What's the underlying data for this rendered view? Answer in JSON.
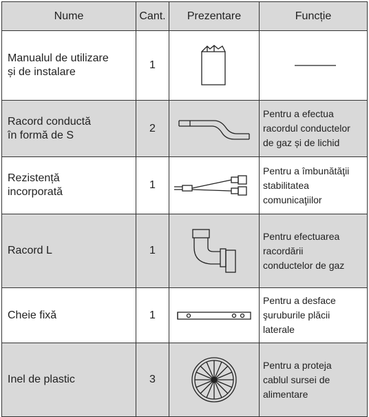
{
  "table": {
    "header": [
      "Nume",
      "Cant.",
      "Prezentare",
      "Funcție"
    ],
    "rows": [
      {
        "name": "Manualul de utilizare\nși de instalare",
        "count": 1
      },
      {
        "name": "Racord conductă\nîn formă de S",
        "count": 2,
        "function": "Pentru a efectua\nracordul conductelor\nde gaz și de lichid"
      },
      {
        "name": "Rezistență\nincorporată",
        "count": 1,
        "function": "Pentru a îmbunătăţii\nstabilitatea\ncomunicaţiilor"
      },
      {
        "name": "Racord L",
        "count": 1,
        "function": "Pentru efectuarea\nracordării\nconductelor de gaz"
      },
      {
        "name": "Cheie fixă",
        "count": 1,
        "function": "Pentru a desface\nşuruburile plăcii\nlaterale"
      },
      {
        "name": "Inel de plastic",
        "count": 3,
        "function": "Pentru a proteja\ncablul sursei de\nalimentare"
      }
    ]
  }
}
